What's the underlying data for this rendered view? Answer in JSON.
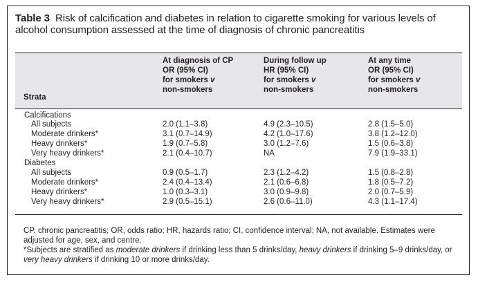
{
  "table": {
    "title_label": "Table 3",
    "title_text": "Risk of calcification and diabetes in relation to cigarette smoking for various levels of alcohol consumption assessed at the time of diagnosis of chronic pancreatitis",
    "strata_header": "Strata",
    "columns": [
      {
        "line1": "At diagnosis of CP",
        "line2": "OR (95% CI)",
        "line3a": "for smokers ",
        "line3b": "v",
        "line4": "non-smokers"
      },
      {
        "line1": "During follow up",
        "line2": "HR (95% CI)",
        "line3a": "for smokers ",
        "line3b": "v",
        "line4": "non-smokers"
      },
      {
        "line1": "At any time",
        "line2": "OR (95% CI)",
        "line3a": "for smokers ",
        "line3b": "v",
        "line4": "non-smokers"
      }
    ],
    "sections": [
      {
        "name": "Calcifications",
        "rows": [
          {
            "stratum": "All subjects",
            "values": [
              "2.0 (1.1–3.8)",
              "4.9 (2.3–10.5)",
              "2.8 (1.5–5.0)"
            ]
          },
          {
            "stratum": "Moderate drinkers*",
            "values": [
              "3.1 (0.7–14.9)",
              "4.2 (1.0–17.6)",
              "3.8 (1.2–12.0)"
            ]
          },
          {
            "stratum": "Heavy drinkers*",
            "values": [
              "1.9 (0.7–5.8)",
              "3.0 (1.2–7.6)",
              "1.5 (0.6–3.8)"
            ]
          },
          {
            "stratum": "Very heavy drinkers*",
            "values": [
              "2.1 (0.4–10.7)",
              "NA",
              "7.9 (1.9–33.1)"
            ]
          }
        ]
      },
      {
        "name": "Diabetes",
        "rows": [
          {
            "stratum": "All subjects",
            "values": [
              "0.9 (0.5–1.7)",
              "2.3 (1.2–4.2)",
              "1.5 (0.8–2.8)"
            ]
          },
          {
            "stratum": "Moderate drinkers*",
            "values": [
              "2.4 (0.4–13.4)",
              "2.1 (0.6–6.8)",
              "1.8 (0.5–7.2)"
            ]
          },
          {
            "stratum": "Heavy drinkers*",
            "values": [
              "1.0 (0.3–3.1)",
              "3.0 (0.9–9.8)",
              "2.0 (0.7–5.9)"
            ]
          },
          {
            "stratum": "Very heavy drinkers*",
            "values": [
              "2.9 (0.5–15.1)",
              "2.6 (0.6–11.0)",
              "4.3 (1.1–17.4)"
            ]
          }
        ]
      }
    ],
    "footnote1": "CP, chronic pancreatitis; OR, odds ratio; HR, hazards ratio; CI, confidence interval; NA, not available. Estimates were adjusted for age, sex, and centre.",
    "footnote2_a": "*Subjects are stratified as ",
    "footnote2_b": "moderate drinkers",
    "footnote2_c": " if drinking less than 5 drinks/day, ",
    "footnote2_d": "heavy drinkers",
    "footnote2_e": " if drinking 5–9 drinks/day, or ",
    "footnote2_f": "very heavy drinkers",
    "footnote2_g": " if drinking 10 or more drinks/day."
  }
}
